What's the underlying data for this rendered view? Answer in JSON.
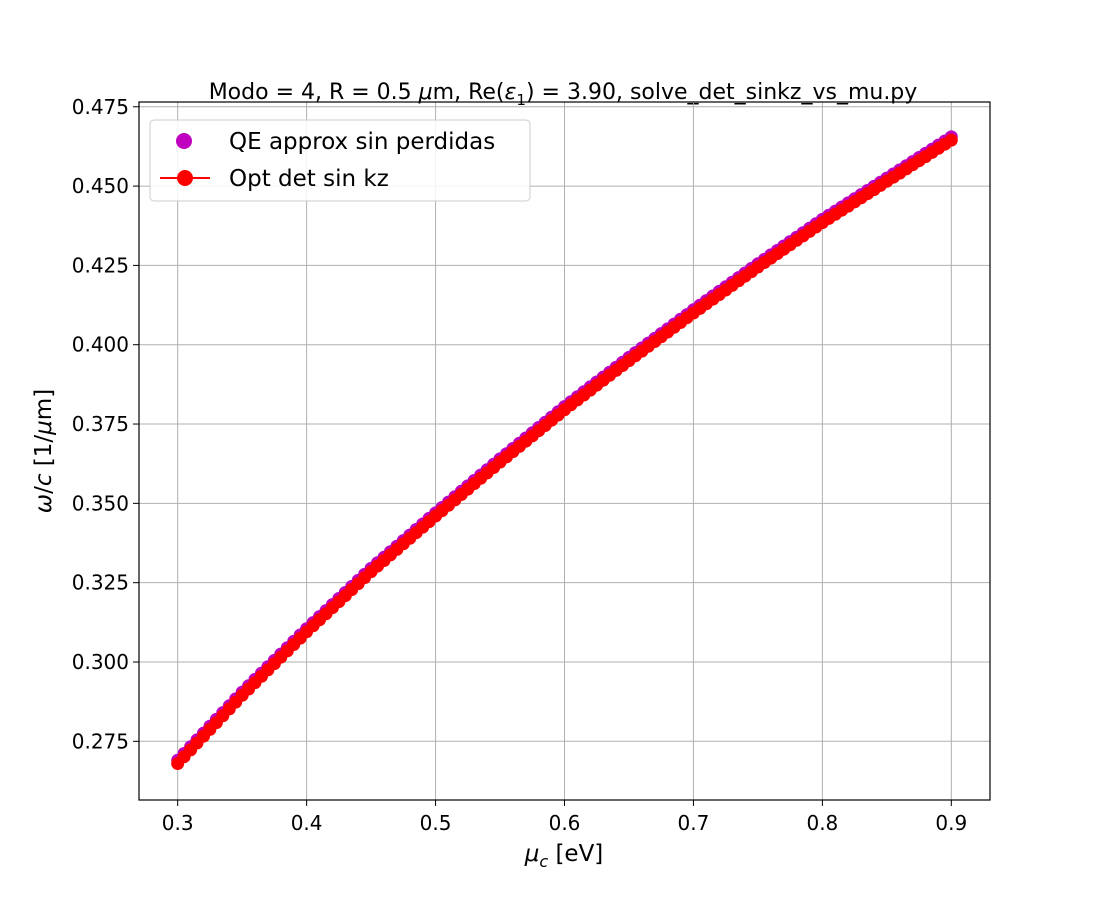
{
  "chart_data": {
    "type": "line",
    "title_parts": {
      "prefix": "Modo = 4, R = 0.5 ",
      "mu": "μ",
      "m_re": "m, Re(",
      "eps": "ε",
      "sub": "1",
      "suffix": ") = 3.90, solve_det_sinkz_vs_mu.py"
    },
    "xlabel_parts": {
      "mu": "μ",
      "sub": "c",
      "rest": " [eV]"
    },
    "ylabel_parts": {
      "omega": "ω",
      "slash": "/",
      "c": "c",
      "open": " [1/",
      "mu": "μ",
      "close": "m]"
    },
    "xlim": [
      0.27,
      0.93
    ],
    "ylim": [
      0.2565,
      0.4765
    ],
    "xticks": [
      0.3,
      0.4,
      0.5,
      0.6,
      0.7,
      0.8,
      0.9
    ],
    "xtick_labels": [
      "0.3",
      "0.4",
      "0.5",
      "0.6",
      "0.7",
      "0.8",
      "0.9"
    ],
    "yticks": [
      0.275,
      0.3,
      0.325,
      0.35,
      0.375,
      0.4,
      0.425,
      0.45,
      0.475
    ],
    "ytick_labels": [
      "0.275",
      "0.300",
      "0.325",
      "0.350",
      "0.375",
      "0.400",
      "0.425",
      "0.450",
      "0.475"
    ],
    "grid": true,
    "legend_placement": "top-left",
    "x": [
      0.3,
      0.35,
      0.4,
      0.45,
      0.5,
      0.55,
      0.6,
      0.65,
      0.7,
      0.75,
      0.8,
      0.85,
      0.9
    ],
    "series": [
      {
        "name": "QE approx sin perdidas",
        "color": "#bf00bf",
        "style": "markers",
        "values": [
          0.269,
          0.2905,
          0.3105,
          0.3295,
          0.347,
          0.364,
          0.3805,
          0.396,
          0.411,
          0.4255,
          0.4395,
          0.4525,
          0.4655
        ]
      },
      {
        "name": "Opt det sin kz",
        "color": "#ff0000",
        "style": "line-markers",
        "values": [
          0.268,
          0.2895,
          0.3095,
          0.3285,
          0.346,
          0.363,
          0.3795,
          0.395,
          0.41,
          0.4245,
          0.4385,
          0.4515,
          0.4645
        ]
      }
    ]
  }
}
